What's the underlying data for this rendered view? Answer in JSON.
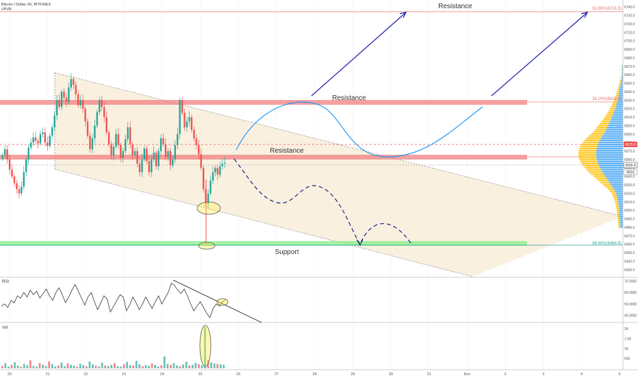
{
  "header": {
    "symbol_line": "Bitcoin / Dollar, 60, BITFINEX",
    "indicator": "VPVR"
  },
  "annotations": {
    "resistance_top": "Resistance",
    "resistance_upper": "Resistance",
    "resistance_lower": "Resistance",
    "support": "Support",
    "fib_618": "61.80%(6731.5)",
    "fib_upper": "38.20%(6626.0)",
    "fib_support": "68.60%(6464.8)"
  },
  "price_tags": {
    "current": "6556.8",
    "sub": "6612",
    "red_tag": "6575.0"
  },
  "panels": {
    "rsi_label": "RSI",
    "vol_label": "Vol"
  },
  "colors": {
    "resistance_band": "#f08080",
    "support_band": "#90ee90",
    "channel_fill": "#f5e6cc",
    "projection": "#2196f3",
    "dashed_projection": "#1a237e",
    "arrows": "#1a1aaa",
    "up_candle": "#26a69a",
    "down_candle": "#ef5350",
    "vpvr_blue": "#42a5f5",
    "vpvr_orange": "#ffc107"
  },
  "chart_data": [
    {
      "type": "candlestick",
      "ylim": [
        6425,
        6745
      ],
      "y_ticks": [
        "6740.0",
        "6730.0",
        "6720.0",
        "6710.0",
        "6700.0",
        "6690.0",
        "6680.0",
        "6670.0",
        "6660.0",
        "6650.0",
        "6640.0",
        "6630.0",
        "6620.0",
        "6610.0",
        "6600.0",
        "6590.0",
        "6580.0",
        "6570.0",
        "6560.0",
        "6550.0",
        "6540.0",
        "6530.0",
        "6520.0",
        "6510.0",
        "6500.0",
        "6490.0",
        "6480.0",
        "6470.0",
        "6460.0",
        "6450.0",
        "6440.0",
        "6430.0"
      ],
      "x_ticks": [
        "20",
        "21",
        "22",
        "23",
        "24",
        "25",
        "26",
        "27",
        "28",
        "29",
        "30",
        "31",
        "Nov",
        "2",
        "3",
        "4",
        "5"
      ],
      "levels": {
        "fib_618": 6731.5,
        "resistance_upper": 6626.0,
        "resistance_lower": 6570.0,
        "support": 6464.8
      },
      "closes": [
        6565,
        6572,
        6560,
        6548,
        6540,
        6532,
        6525,
        6520,
        6528,
        6545,
        6560,
        6574,
        6580,
        6586,
        6582,
        6579,
        6590,
        6592,
        6580,
        6576,
        6588,
        6598,
        6612,
        6630,
        6622,
        6640,
        6633,
        6628,
        6645,
        6655,
        6648,
        6637,
        6624,
        6630,
        6620,
        6605,
        6588,
        6572,
        6585,
        6600,
        6616,
        6630,
        6622,
        6610,
        6592,
        6578,
        6565,
        6575,
        6590,
        6577,
        6562,
        6570,
        6584,
        6598,
        6578,
        6565,
        6570,
        6555,
        6545,
        6560,
        6573,
        6558,
        6545,
        6560,
        6568,
        6552,
        6570,
        6585,
        6578,
        6563,
        6570,
        6553,
        6560,
        6577,
        6590,
        6630,
        6615,
        6598,
        6605,
        6610,
        6595,
        6585,
        6577,
        6566,
        6550,
        6525,
        6508,
        6520,
        6535,
        6545,
        6550,
        6542,
        6552,
        6555,
        6556
      ]
    },
    {
      "type": "line",
      "title": "RSI",
      "ylim": [
        35,
        72
      ],
      "y_ticks": [
        "70.0000",
        "60.0000",
        "50.0000",
        "40.0000"
      ],
      "values": [
        48,
        50,
        47,
        53,
        51,
        57,
        55,
        60,
        56,
        62,
        58,
        61,
        55,
        59,
        63,
        57,
        53,
        60,
        64,
        58,
        51,
        56,
        62,
        67,
        61,
        55,
        49,
        56,
        60,
        52,
        45,
        51,
        57,
        54,
        43,
        48,
        53,
        58,
        56,
        44,
        49,
        56,
        51,
        45,
        50,
        56,
        51,
        46,
        52,
        57,
        50,
        55,
        60,
        68,
        66,
        62,
        59,
        63,
        57,
        50,
        44,
        48,
        52,
        47,
        42,
        38,
        46,
        50,
        48,
        52,
        54
      ]
    },
    {
      "type": "bar",
      "title": "Vol",
      "ylim": [
        0,
        2200
      ],
      "y_ticks": [
        "2K",
        "1.5K",
        "1K",
        "500"
      ],
      "values": [
        120,
        260,
        90,
        180,
        310,
        140,
        80,
        220,
        160,
        400,
        130,
        90,
        270,
        180,
        120,
        350,
        210,
        90,
        150,
        300,
        110,
        260,
        180,
        140,
        80,
        230,
        170,
        110,
        340,
        200,
        140,
        90,
        290,
        150,
        120,
        180,
        260,
        110,
        90,
        210,
        320,
        160,
        140,
        380,
        200,
        110,
        170,
        130,
        250,
        180,
        90,
        150,
        600,
        220,
        180,
        260,
        140,
        110,
        190,
        330,
        150,
        180,
        280,
        210,
        160,
        2100,
        420,
        300,
        250,
        220,
        200,
        180
      ]
    }
  ]
}
